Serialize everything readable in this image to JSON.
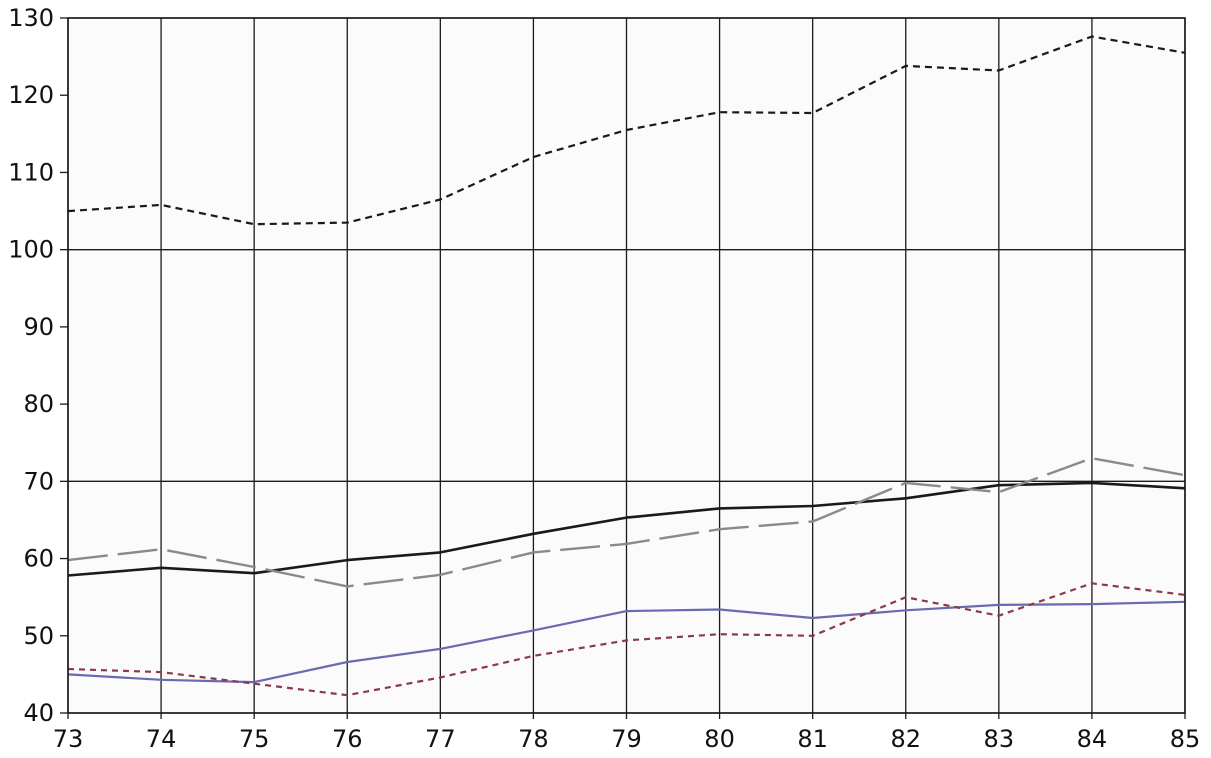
{
  "chart_data": {
    "type": "line",
    "x": [
      73,
      74,
      75,
      76,
      77,
      78,
      79,
      80,
      81,
      82,
      83,
      84,
      85
    ],
    "xlim": [
      73,
      85
    ],
    "ylim": [
      40,
      130
    ],
    "y_ticks": [
      40,
      50,
      60,
      70,
      80,
      90,
      100,
      110,
      120,
      130
    ],
    "grid": true,
    "legend": "none",
    "series": [
      {
        "values": [
          105,
          105.8,
          103.3,
          103.5,
          106.5,
          112,
          115.5,
          117.8,
          117.7,
          123.8,
          123.2,
          127.6,
          125.5
        ],
        "color": "#1a1a1a",
        "dash": "7,5",
        "width": 2.2
      },
      {
        "values": [
          57.8,
          58.8,
          58.1,
          59.8,
          60.8,
          63.2,
          65.3,
          66.5,
          66.8,
          67.8,
          69.5,
          69.8,
          69.1
        ],
        "color": "#1a1a1a",
        "dash": "",
        "width": 2.6
      },
      {
        "values": [
          59.8,
          61.2,
          58.9,
          56.4,
          57.9,
          60.8,
          61.9,
          63.8,
          64.8,
          69.8,
          68.6,
          73.0,
          70.8
        ],
        "color": "#8a8a8a",
        "dash": "40,10",
        "width": 2.4
      },
      {
        "values": [
          45.0,
          44.3,
          44.0,
          46.6,
          48.3,
          50.7,
          53.2,
          53.4,
          52.3,
          53.3,
          54.0,
          54.1,
          54.4
        ],
        "color": "#6a6ab0",
        "dash": "",
        "width": 2.2
      },
      {
        "values": [
          45.7,
          45.3,
          43.8,
          42.3,
          44.6,
          47.4,
          49.4,
          50.2,
          50.0,
          55.0,
          52.6,
          56.8,
          55.3
        ],
        "color": "#8a3a4a",
        "dash": "6,5",
        "width": 2.2
      }
    ]
  }
}
